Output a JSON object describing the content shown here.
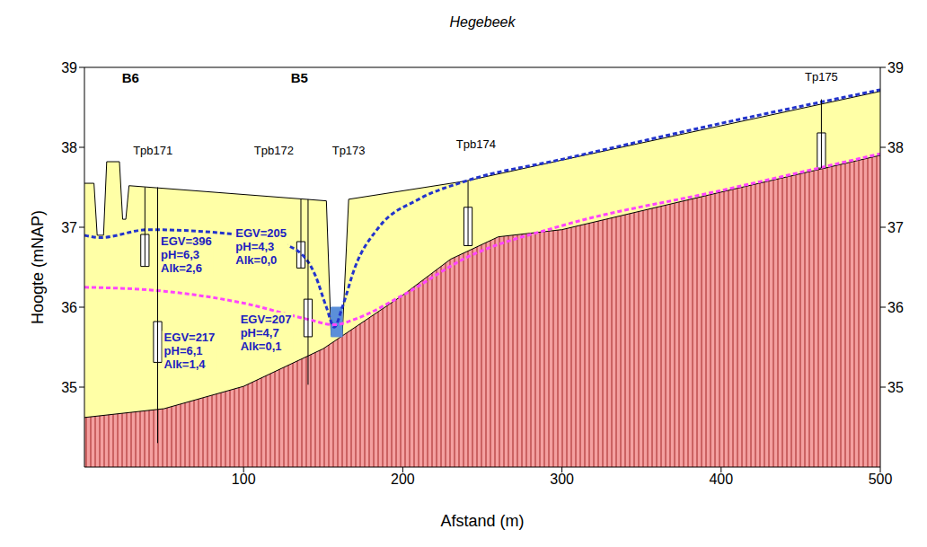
{
  "chart_data": {
    "type": "cross_section",
    "title": "Hegebeek",
    "x_label": "Afstand (m)",
    "y_label": "Hoogte (mNAP)",
    "xlim": [
      0,
      500
    ],
    "xticks": [
      100,
      200,
      300,
      400,
      500
    ],
    "ylim": [
      34,
      39
    ],
    "yticks": [
      35,
      36,
      37,
      38,
      39
    ],
    "grid": false,
    "series": [
      {
        "type": "area",
        "color": "#ffffa6",
        "x": [
          0,
          6,
          8,
          12,
          14,
          22,
          24,
          26,
          28,
          152,
          155,
          162,
          166,
          240,
          300,
          400,
          500
        ],
        "values": [
          37.55,
          37.55,
          36.9,
          36.9,
          37.82,
          37.82,
          37.1,
          37.1,
          37.52,
          37.33,
          35.65,
          35.65,
          37.35,
          37.58,
          37.84,
          38.27,
          38.7
        ]
      },
      {
        "type": "area",
        "color": "#f4a0a0",
        "line_style": "hatched",
        "x": [
          0,
          50,
          100,
          150,
          200,
          230,
          260,
          300,
          400,
          500
        ],
        "values": [
          34.62,
          34.73,
          35.01,
          35.48,
          36.15,
          36.6,
          36.88,
          36.97,
          37.44,
          37.9
        ]
      },
      {
        "type": "line",
        "color": "#2233cc",
        "line_style": "dashed",
        "x": [
          0,
          10,
          40,
          100,
          130,
          145,
          152,
          157,
          162,
          170,
          185,
          210,
          240,
          300,
          400,
          500
        ],
        "values": [
          36.9,
          36.87,
          36.97,
          36.9,
          36.75,
          36.4,
          36.0,
          35.75,
          36.0,
          36.5,
          37.0,
          37.35,
          37.58,
          37.85,
          38.3,
          38.72
        ]
      },
      {
        "type": "line",
        "color": "#ff44ff",
        "line_style": "dashed",
        "x": [
          0,
          50,
          100,
          140,
          157,
          170,
          200,
          240,
          300,
          400,
          500
        ],
        "values": [
          36.25,
          36.2,
          36.05,
          35.85,
          35.78,
          35.85,
          36.15,
          36.62,
          37.02,
          37.46,
          37.92
        ]
      }
    ],
    "water": {
      "x": [
        155,
        162
      ],
      "y": [
        35.63,
        36.0
      ],
      "color": "#5b8fd9"
    },
    "wells": [
      {
        "label": "Tpb171",
        "label_x": 43,
        "label_y": 37.95,
        "pipes": [
          {
            "x": 38,
            "top": 37.5,
            "bottom": 36.51,
            "filter": [
              36.51,
              36.91
            ]
          },
          {
            "x": 46,
            "top": 37.5,
            "bottom": 34.3,
            "filter": [
              35.31,
              35.82
            ]
          }
        ]
      },
      {
        "label": "Tpb172",
        "label_x": 119,
        "label_y": 37.95,
        "pipes": [
          {
            "x": 136,
            "top": 37.35,
            "bottom": 36.49,
            "filter": [
              36.49,
              36.82
            ]
          },
          {
            "x": 140.5,
            "top": 37.35,
            "bottom": 35.03,
            "filter": [
              35.63,
              36.1
            ]
          }
        ]
      },
      {
        "label": "Tp173",
        "label_x": 166,
        "label_y": 37.95,
        "pipes": []
      },
      {
        "label": "Tpb174",
        "label_x": 246,
        "label_y": 38.03,
        "pipes": [
          {
            "x": 241,
            "top": 37.58,
            "bottom": 36.77,
            "filter": [
              36.77,
              37.25
            ]
          }
        ]
      },
      {
        "label": "Tp175",
        "label_x": 463,
        "label_y": 38.87,
        "pipes": [
          {
            "x": 463,
            "top": 38.6,
            "bottom": 37.74,
            "filter": [
              37.74,
              38.18
            ]
          }
        ]
      }
    ],
    "boreholes": [
      {
        "text": "B6",
        "x": 29,
        "y": 38.85
      },
      {
        "text": "B5",
        "x": 135,
        "y": 38.85
      }
    ],
    "annotations": [
      {
        "text": [
          "EGV=396",
          "pH=6,3",
          "Alk=2,6"
        ],
        "x": 48,
        "y": 36.78,
        "color": "#2020c0"
      },
      {
        "text": [
          "EGV=205",
          "pH=4,3",
          "Alk=0,0"
        ],
        "x": 95,
        "y": 36.88,
        "color": "#2020c0"
      },
      {
        "text": [
          "EGV=207",
          "pH=4,7",
          "Alk=0,1"
        ],
        "x": 98,
        "y": 35.8,
        "color": "#2020c0"
      },
      {
        "text": [
          "EGV=217",
          "pH=6,1",
          "Alk=1,4"
        ],
        "x": 50,
        "y": 35.57,
        "color": "#2020c0"
      }
    ]
  }
}
